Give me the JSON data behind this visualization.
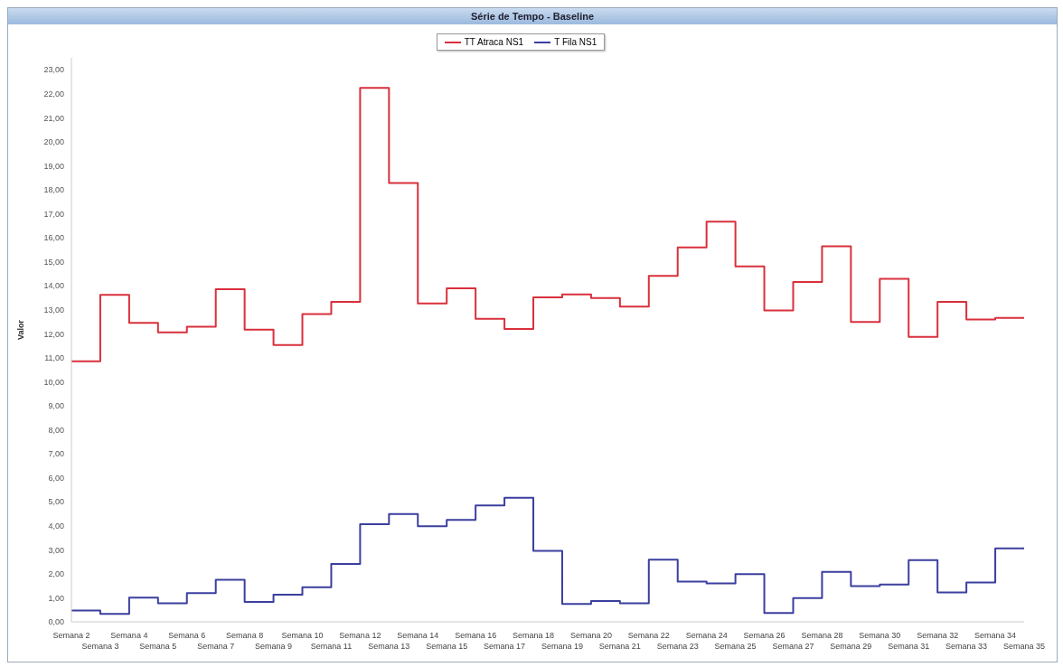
{
  "chart_data": {
    "type": "step",
    "title": "Série de Tempo - Baseline",
    "ylabel": "Valor",
    "categories": [
      "Semana 2",
      "Semana 3",
      "Semana 4",
      "Semana 5",
      "Semana 6",
      "Semana 7",
      "Semana 8",
      "Semana 9",
      "Semana 10",
      "Semana 11",
      "Semana 12",
      "Semana 13",
      "Semana 14",
      "Semana 15",
      "Semana 16",
      "Semana 17",
      "Semana 18",
      "Semana 19",
      "Semana 20",
      "Semana 21",
      "Semana 22",
      "Semana 23",
      "Semana 24",
      "Semana 25",
      "Semana 26",
      "Semana 27",
      "Semana 28",
      "Semana 29",
      "Semana 30",
      "Semana 31",
      "Semana 32",
      "Semana 33",
      "Semana 34",
      "Semana 35"
    ],
    "series": [
      {
        "name": "TT Atraca NS1",
        "color": "#d9303c",
        "values": [
          10.86,
          13.62,
          12.46,
          12.06,
          12.3,
          13.86,
          12.17,
          11.53,
          12.82,
          13.33,
          22.25,
          18.28,
          13.27,
          13.9,
          12.63,
          12.2,
          13.52,
          13.64,
          13.49,
          13.13,
          14.41,
          15.6,
          16.67,
          14.81,
          12.97,
          14.16,
          15.65,
          12.49,
          14.29,
          11.87,
          13.33,
          12.6,
          12.66,
          12.66
        ]
      },
      {
        "name": "T Fila NS1",
        "color": "#3b3f9e",
        "values": [
          0.47,
          0.33,
          1.01,
          0.77,
          1.2,
          1.75,
          0.83,
          1.13,
          1.44,
          2.41,
          4.07,
          4.49,
          3.98,
          4.25,
          4.85,
          5.17,
          2.96,
          0.74,
          0.87,
          0.77,
          2.59,
          1.68,
          1.6,
          1.99,
          0.37,
          0.99,
          2.08,
          1.49,
          1.55,
          2.57,
          1.22,
          1.64,
          3.06,
          3.06
        ]
      }
    ],
    "ylim": [
      0,
      23.5
    ],
    "yticks": [
      {
        "value": 0,
        "label": "0,00"
      },
      {
        "value": 1,
        "label": "1,00"
      },
      {
        "value": 2,
        "label": "2,00"
      },
      {
        "value": 3,
        "label": "3,00"
      },
      {
        "value": 4,
        "label": "4,00"
      },
      {
        "value": 5,
        "label": "5,00"
      },
      {
        "value": 6,
        "label": "6,00"
      },
      {
        "value": 7,
        "label": "7,00"
      },
      {
        "value": 8,
        "label": "8,00"
      },
      {
        "value": 9,
        "label": "9,00"
      },
      {
        "value": 10,
        "label": "10,00"
      },
      {
        "value": 11,
        "label": "11,00"
      },
      {
        "value": 12,
        "label": "12,00"
      },
      {
        "value": 13,
        "label": "13,00"
      },
      {
        "value": 14,
        "label": "14,00"
      },
      {
        "value": 15,
        "label": "15,00"
      },
      {
        "value": 16,
        "label": "16,00"
      },
      {
        "value": 17,
        "label": "17,00"
      },
      {
        "value": 18,
        "label": "18,00"
      },
      {
        "value": 19,
        "label": "19,00"
      },
      {
        "value": 20,
        "label": "20,00"
      },
      {
        "value": 21,
        "label": "21,00"
      },
      {
        "value": 22,
        "label": "22,00"
      },
      {
        "value": 23,
        "label": "23,00"
      }
    ],
    "legend": "top",
    "grid": false,
    "marker": "none",
    "line_style": "solid"
  }
}
